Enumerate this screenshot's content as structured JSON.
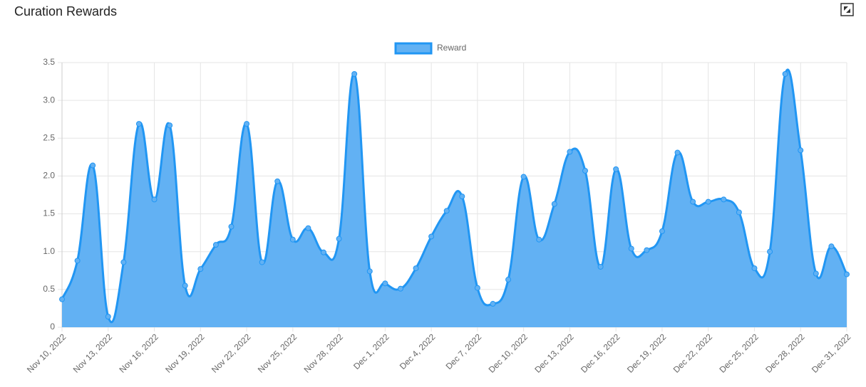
{
  "chart_data": {
    "type": "line",
    "title": "Curation Rewards",
    "categories": [
      "Nov 10, 2022",
      null,
      null,
      "Nov 13, 2022",
      null,
      null,
      "Nov 16, 2022",
      null,
      null,
      "Nov 19, 2022",
      null,
      null,
      "Nov 22, 2022",
      null,
      null,
      "Nov 25, 2022",
      null,
      null,
      "Nov 28, 2022",
      null,
      null,
      "Dec 1, 2022",
      null,
      null,
      "Dec 4, 2022",
      null,
      null,
      "Dec 7, 2022",
      null,
      null,
      "Dec 10, 2022",
      null,
      null,
      "Dec 13, 2022",
      null,
      null,
      "Dec 16, 2022",
      null,
      null,
      "Dec 19, 2022",
      null,
      null,
      "Dec 22, 2022",
      null,
      null,
      "Dec 25, 2022",
      null,
      null,
      "Dec 28, 2022",
      null,
      null,
      "Dec 31, 2022"
    ],
    "series": [
      {
        "name": "Reward",
        "color": "#2196f3",
        "fill": "#62b1f3",
        "values": [
          0.37,
          0.88,
          2.14,
          0.14,
          0.86,
          2.69,
          1.69,
          2.67,
          0.55,
          0.77,
          1.09,
          1.33,
          2.69,
          0.86,
          1.93,
          1.16,
          1.31,
          0.99,
          1.17,
          3.35,
          0.74,
          0.58,
          0.51,
          0.78,
          1.2,
          1.54,
          1.73,
          0.52,
          0.31,
          0.63,
          1.99,
          1.16,
          1.63,
          2.32,
          2.07,
          0.8,
          2.09,
          1.04,
          1.02,
          1.27,
          2.31,
          1.66,
          1.66,
          1.69,
          1.52,
          0.78,
          1.0,
          3.35,
          2.34,
          0.71,
          1.07,
          0.7
        ]
      }
    ],
    "ylim": [
      0,
      3.5
    ],
    "yticks": [
      0,
      0.5,
      {
        "value": 1,
        "label": "1.0"
      },
      1.5,
      {
        "value": 2,
        "label": "2.0"
      },
      2.5,
      {
        "value": 3,
        "label": "3.0"
      },
      3.5
    ],
    "grid": true,
    "legend": "top"
  }
}
